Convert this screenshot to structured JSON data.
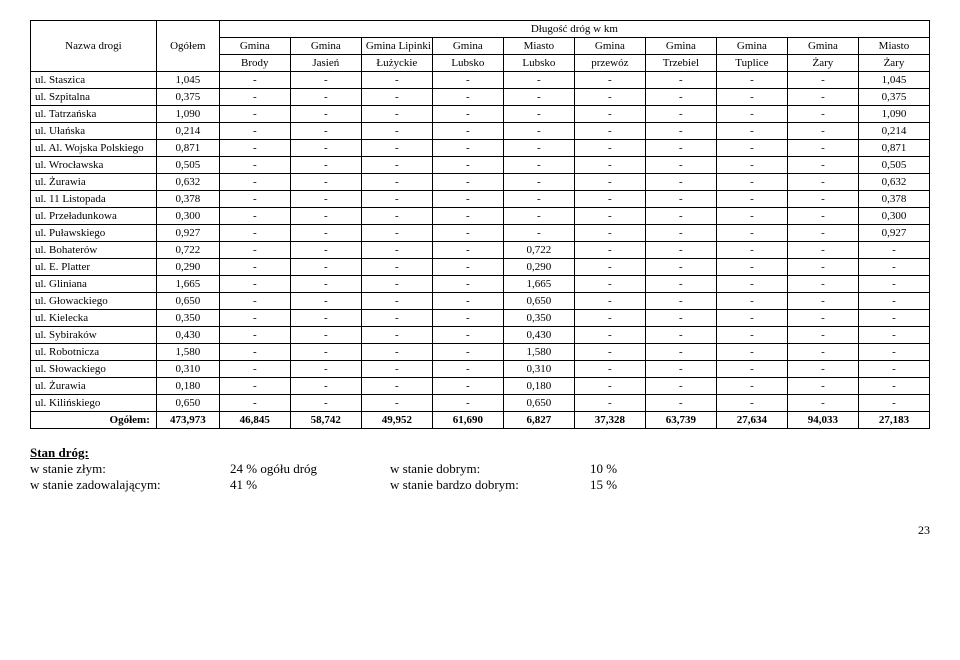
{
  "header": {
    "title_top": "Długość dróg w km",
    "col_name": "Nazwa drogi",
    "col_total": "Ogółem",
    "groups": [
      {
        "top": "Gmina",
        "bottom": "Brody"
      },
      {
        "top": "Gmina",
        "bottom": "Jasień"
      },
      {
        "top": "Gmina Lipinki",
        "bottom": "Łużyckie"
      },
      {
        "top": "Gmina",
        "bottom": "Lubsko"
      },
      {
        "top": "Miasto",
        "bottom": "Lubsko"
      },
      {
        "top": "Gmina",
        "bottom": "przewóz"
      },
      {
        "top": "Gmina",
        "bottom": "Trzebiel"
      },
      {
        "top": "Gmina",
        "bottom": "Tuplice"
      },
      {
        "top": "Gmina",
        "bottom": "Żary"
      },
      {
        "top": "Miasto",
        "bottom": "Żary"
      }
    ]
  },
  "rows": [
    {
      "name": "ul. Staszica",
      "vals": [
        "1,045",
        "-",
        "-",
        "-",
        "-",
        "-",
        "-",
        "-",
        "-",
        "-",
        "1,045"
      ]
    },
    {
      "name": "ul. Szpitalna",
      "vals": [
        "0,375",
        "-",
        "-",
        "-",
        "-",
        "-",
        "-",
        "-",
        "-",
        "-",
        "0,375"
      ]
    },
    {
      "name": "ul. Tatrzańska",
      "vals": [
        "1,090",
        "-",
        "-",
        "-",
        "-",
        "-",
        "-",
        "-",
        "-",
        "-",
        "1,090"
      ]
    },
    {
      "name": "ul. Ułańska",
      "vals": [
        "0,214",
        "-",
        "-",
        "-",
        "-",
        "-",
        "-",
        "-",
        "-",
        "-",
        "0,214"
      ]
    },
    {
      "name": "ul. Al. Wojska Polskiego",
      "vals": [
        "0,871",
        "-",
        "-",
        "-",
        "-",
        "-",
        "-",
        "-",
        "-",
        "-",
        "0,871"
      ]
    },
    {
      "name": "ul. Wrocławska",
      "vals": [
        "0,505",
        "-",
        "-",
        "-",
        "-",
        "-",
        "-",
        "-",
        "-",
        "-",
        "0,505"
      ]
    },
    {
      "name": "ul. Żurawia",
      "vals": [
        "0,632",
        "-",
        "-",
        "-",
        "-",
        "-",
        "-",
        "-",
        "-",
        "-",
        "0,632"
      ]
    },
    {
      "name": "ul. 11 Listopada",
      "vals": [
        "0,378",
        "-",
        "-",
        "-",
        "-",
        "-",
        "-",
        "-",
        "-",
        "-",
        "0,378"
      ]
    },
    {
      "name": "ul. Przeładunkowa",
      "vals": [
        "0,300",
        "-",
        "-",
        "-",
        "-",
        "-",
        "-",
        "-",
        "-",
        "-",
        "0,300"
      ]
    },
    {
      "name": "ul. Puławskiego",
      "vals": [
        "0,927",
        "-",
        "-",
        "-",
        "-",
        "-",
        "-",
        "-",
        "-",
        "-",
        "0,927"
      ]
    },
    {
      "name": "ul. Bohaterów",
      "vals": [
        "0,722",
        "-",
        "-",
        "-",
        "-",
        "0,722",
        "-",
        "-",
        "-",
        "-",
        "-"
      ]
    },
    {
      "name": "ul. E. Platter",
      "vals": [
        "0,290",
        "-",
        "-",
        "-",
        "-",
        "0,290",
        "-",
        "-",
        "-",
        "-",
        "-"
      ]
    },
    {
      "name": "ul. Gliniana",
      "vals": [
        "1,665",
        "-",
        "-",
        "-",
        "-",
        "1,665",
        "-",
        "-",
        "-",
        "-",
        "-"
      ]
    },
    {
      "name": "ul. Głowackiego",
      "vals": [
        "0,650",
        "-",
        "-",
        "-",
        "-",
        "0,650",
        "-",
        "-",
        "-",
        "-",
        "-"
      ]
    },
    {
      "name": "ul. Kielecka",
      "vals": [
        "0,350",
        "-",
        "-",
        "-",
        "-",
        "0,350",
        "-",
        "-",
        "-",
        "-",
        "-"
      ]
    },
    {
      "name": "ul. Sybiraków",
      "vals": [
        "0,430",
        "-",
        "-",
        "-",
        "-",
        "0,430",
        "-",
        "-",
        "-",
        "-",
        "-"
      ]
    },
    {
      "name": "ul. Robotnicza",
      "vals": [
        "1,580",
        "-",
        "-",
        "-",
        "-",
        "1,580",
        "-",
        "-",
        "-",
        "-",
        "-"
      ]
    },
    {
      "name": "ul. Słowackiego",
      "vals": [
        "0,310",
        "-",
        "-",
        "-",
        "-",
        "0,310",
        "-",
        "-",
        "-",
        "-",
        "-"
      ]
    },
    {
      "name": "ul. Żurawia",
      "vals": [
        "0,180",
        "-",
        "-",
        "-",
        "-",
        "0,180",
        "-",
        "-",
        "-",
        "-",
        "-"
      ]
    },
    {
      "name": "ul. Kilińskiego",
      "vals": [
        "0,650",
        "-",
        "-",
        "-",
        "-",
        "0,650",
        "-",
        "-",
        "-",
        "-",
        "-"
      ]
    }
  ],
  "totals": {
    "label": "Ogółem:",
    "vals": [
      "473,973",
      "46,845",
      "58,742",
      "49,952",
      "61,690",
      "6,827",
      "37,328",
      "63,739",
      "27,634",
      "94,033",
      "27,183"
    ]
  },
  "footer": {
    "heading": "Stan dróg:",
    "lines": [
      {
        "left": "w stanie złym:",
        "mid": "24 % ogółu dróg",
        "right_label": "w stanie dobrym:",
        "right_val": "10 %"
      },
      {
        "left": "w stanie zadowalającym:",
        "mid": "41 %",
        "right_label": "w stanie bardzo dobrym:",
        "right_val": "15 %"
      }
    ]
  },
  "page": "23"
}
